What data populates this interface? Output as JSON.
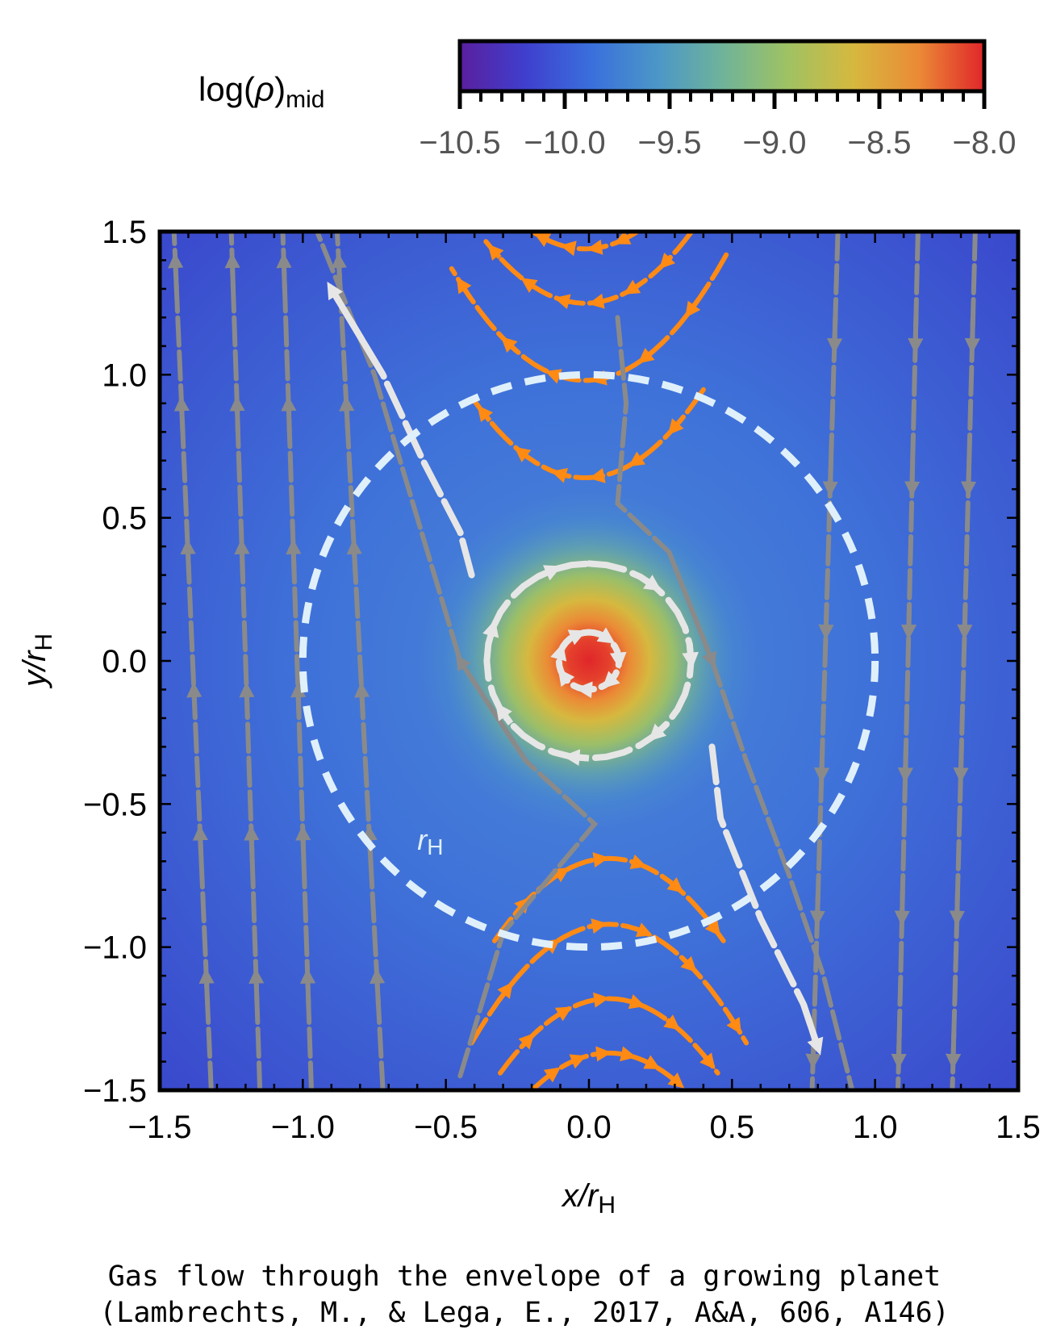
{
  "colorbar": {
    "label_main": "log(",
    "label_rho": "ρ",
    "label_close": ")",
    "label_sub": "mid",
    "min": -10.5,
    "max": -8.0,
    "tick_labels": [
      "−10.5",
      "−10.0",
      "−9.5",
      "−9.0",
      "−8.5",
      "−8.0"
    ],
    "tick_values": [
      -10.5,
      -10.0,
      -9.5,
      -9.0,
      -8.5,
      -8.0
    ],
    "colormap": [
      "#5a1f9e",
      "#3f3fce",
      "#3a6fdc",
      "#4b96c8",
      "#6fb39a",
      "#9fc263",
      "#d6b83f",
      "#eb8a36",
      "#e0262a"
    ]
  },
  "chart_data": {
    "type": "heatmap",
    "description_type": "density heatmap with streamlines",
    "xlabel_main": "x/r",
    "xlabel_sub": "H",
    "ylabel_main": "y/r",
    "ylabel_sub": "H",
    "xlim": [
      -1.5,
      1.5
    ],
    "ylim": [
      -1.5,
      1.5
    ],
    "x_tick_labels": [
      "−1.5",
      "−1.0",
      "−0.5",
      "0.0",
      "0.5",
      "1.0",
      "1.5"
    ],
    "x_tick_values": [
      -1.5,
      -1.0,
      -0.5,
      0.0,
      0.5,
      1.0,
      1.5
    ],
    "y_tick_labels": [
      "1.5",
      "1.0",
      "0.5",
      "0.0",
      "−0.5",
      "−1.0",
      "−1.5"
    ],
    "y_tick_values": [
      1.5,
      1.0,
      0.5,
      0.0,
      -0.5,
      -1.0,
      -1.5
    ],
    "hill_radius": {
      "label_main": "r",
      "label_sub": "H",
      "radius": 1.0,
      "color": "#dff0fb"
    },
    "density_peak": {
      "x": 0.0,
      "y": 0.0,
      "value": -8.0
    },
    "density_background": -10.1,
    "streamline_colors": {
      "horseshoe": "#ff8a14",
      "circulating": "#e6e6e6",
      "passing": "#8a8a8a"
    },
    "streamlines": {
      "passing_left": [
        {
          "x_top": -1.45,
          "x_bottom": -1.32,
          "direction": "up"
        },
        {
          "x_top": -1.25,
          "x_bottom": -1.15,
          "direction": "up"
        },
        {
          "x_top": -1.07,
          "x_bottom": -0.97,
          "direction": "up"
        },
        {
          "x_top": -0.88,
          "x_bottom": -0.72,
          "direction": "up"
        }
      ],
      "passing_right": [
        {
          "x_top": 0.87,
          "x_bottom": 0.78,
          "direction": "down"
        },
        {
          "x_top": 1.15,
          "x_bottom": 1.08,
          "direction": "down"
        },
        {
          "x_top": 1.35,
          "x_bottom": 1.27,
          "direction": "down"
        }
      ],
      "horseshoe_top": [
        {
          "apex_y": 0.64,
          "half_width": 0.4,
          "direction": "left"
        },
        {
          "apex_y": 0.98,
          "half_width": 0.48,
          "direction": "left"
        },
        {
          "apex_y": 1.25,
          "half_width": 0.36,
          "direction": "left"
        },
        {
          "apex_y": 1.44,
          "half_width": 0.28,
          "direction": "left"
        }
      ],
      "horseshoe_bottom": [
        {
          "apex_y": -0.69,
          "half_width": 0.4,
          "direction": "right"
        },
        {
          "apex_y": -0.92,
          "half_width": 0.48,
          "direction": "right"
        },
        {
          "apex_y": -1.18,
          "half_width": 0.38,
          "direction": "right"
        },
        {
          "apex_y": -1.37,
          "half_width": 0.26,
          "direction": "right"
        }
      ],
      "circulating": [
        {
          "radius": 0.1,
          "direction": "clockwise"
        },
        {
          "radius": 0.34,
          "direction": "clockwise"
        }
      ]
    }
  },
  "caption": {
    "line1": "Gas flow through the envelope of a growing planet",
    "line2": "(Lambrechts, M., & Lega, E., 2017, A&A, 606, A146)"
  }
}
